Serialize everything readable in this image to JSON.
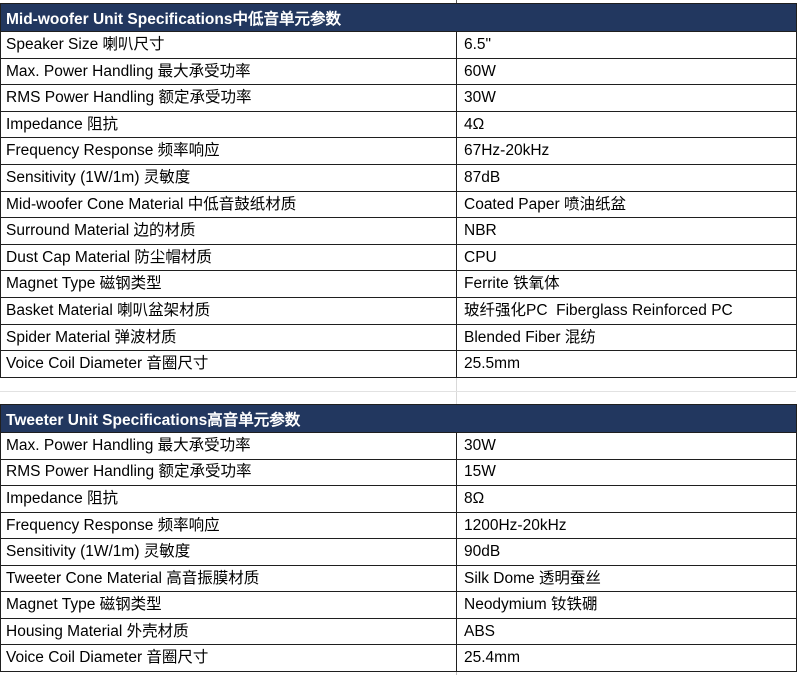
{
  "colors": {
    "header_bg": "#22375f",
    "header_text": "#ffffff",
    "border_dark": "#1f1f1f",
    "gridline": "#d9d9d9",
    "gridline_faint": "#e2e2e2",
    "cell_text": "#000000"
  },
  "tables": [
    {
      "title": "Mid-woofer Unit Specifications中低音单元参数",
      "rows": [
        {
          "label": "Speaker Size 喇叭尺寸",
          "value": "6.5\""
        },
        {
          "label": "Max. Power Handling 最大承受功率",
          "value": "60W"
        },
        {
          "label": "RMS Power Handling 额定承受功率",
          "value": "30W"
        },
        {
          "label": "Impedance 阻抗",
          "value": "4Ω"
        },
        {
          "label": "Frequency Response 频率响应",
          "value": "67Hz-20kHz"
        },
        {
          "label": "Sensitivity (1W/1m) 灵敏度",
          "value": "87dB"
        },
        {
          "label": "Mid-woofer Cone Material 中低音鼓纸材质",
          "value": "Coated Paper 喷油纸盆"
        },
        {
          "label": "Surround Material 边的材质",
          "value": "NBR"
        },
        {
          "label": "Dust Cap Material 防尘帽材质",
          "value": "CPU"
        },
        {
          "label": "Magnet Type 磁钢类型",
          "value": "Ferrite 铁氧体"
        },
        {
          "label": "Basket Material 喇叭盆架材质",
          "value": "玻纤强化PC  Fiberglass Reinforced PC"
        },
        {
          "label": "Spider Material 弹波材质",
          "value": "Blended Fiber 混纺"
        },
        {
          "label": "Voice Coil Diameter 音圈尺寸",
          "value": "25.5mm"
        }
      ]
    },
    {
      "title": "Tweeter Unit Specifications高音单元参数",
      "rows": [
        {
          "label": "Max. Power Handling 最大承受功率",
          "value": "30W"
        },
        {
          "label": "RMS Power Handling 额定承受功率",
          "value": "15W"
        },
        {
          "label": "Impedance 阻抗",
          "value": "8Ω"
        },
        {
          "label": "Frequency Response 频率响应",
          "value": "1200Hz-20kHz"
        },
        {
          "label": "Sensitivity (1W/1m) 灵敏度",
          "value": "90dB"
        },
        {
          "label": "Tweeter Cone Material 高音振膜材质",
          "value": "Silk Dome 透明蚕丝"
        },
        {
          "label": "Magnet Type 磁钢类型",
          "value": "Neodymium 钕铁硼"
        },
        {
          "label": "Housing Material 外壳材质",
          "value": "ABS"
        },
        {
          "label": "Voice Coil Diameter 音圈尺寸",
          "value": "25.4mm"
        }
      ]
    }
  ]
}
